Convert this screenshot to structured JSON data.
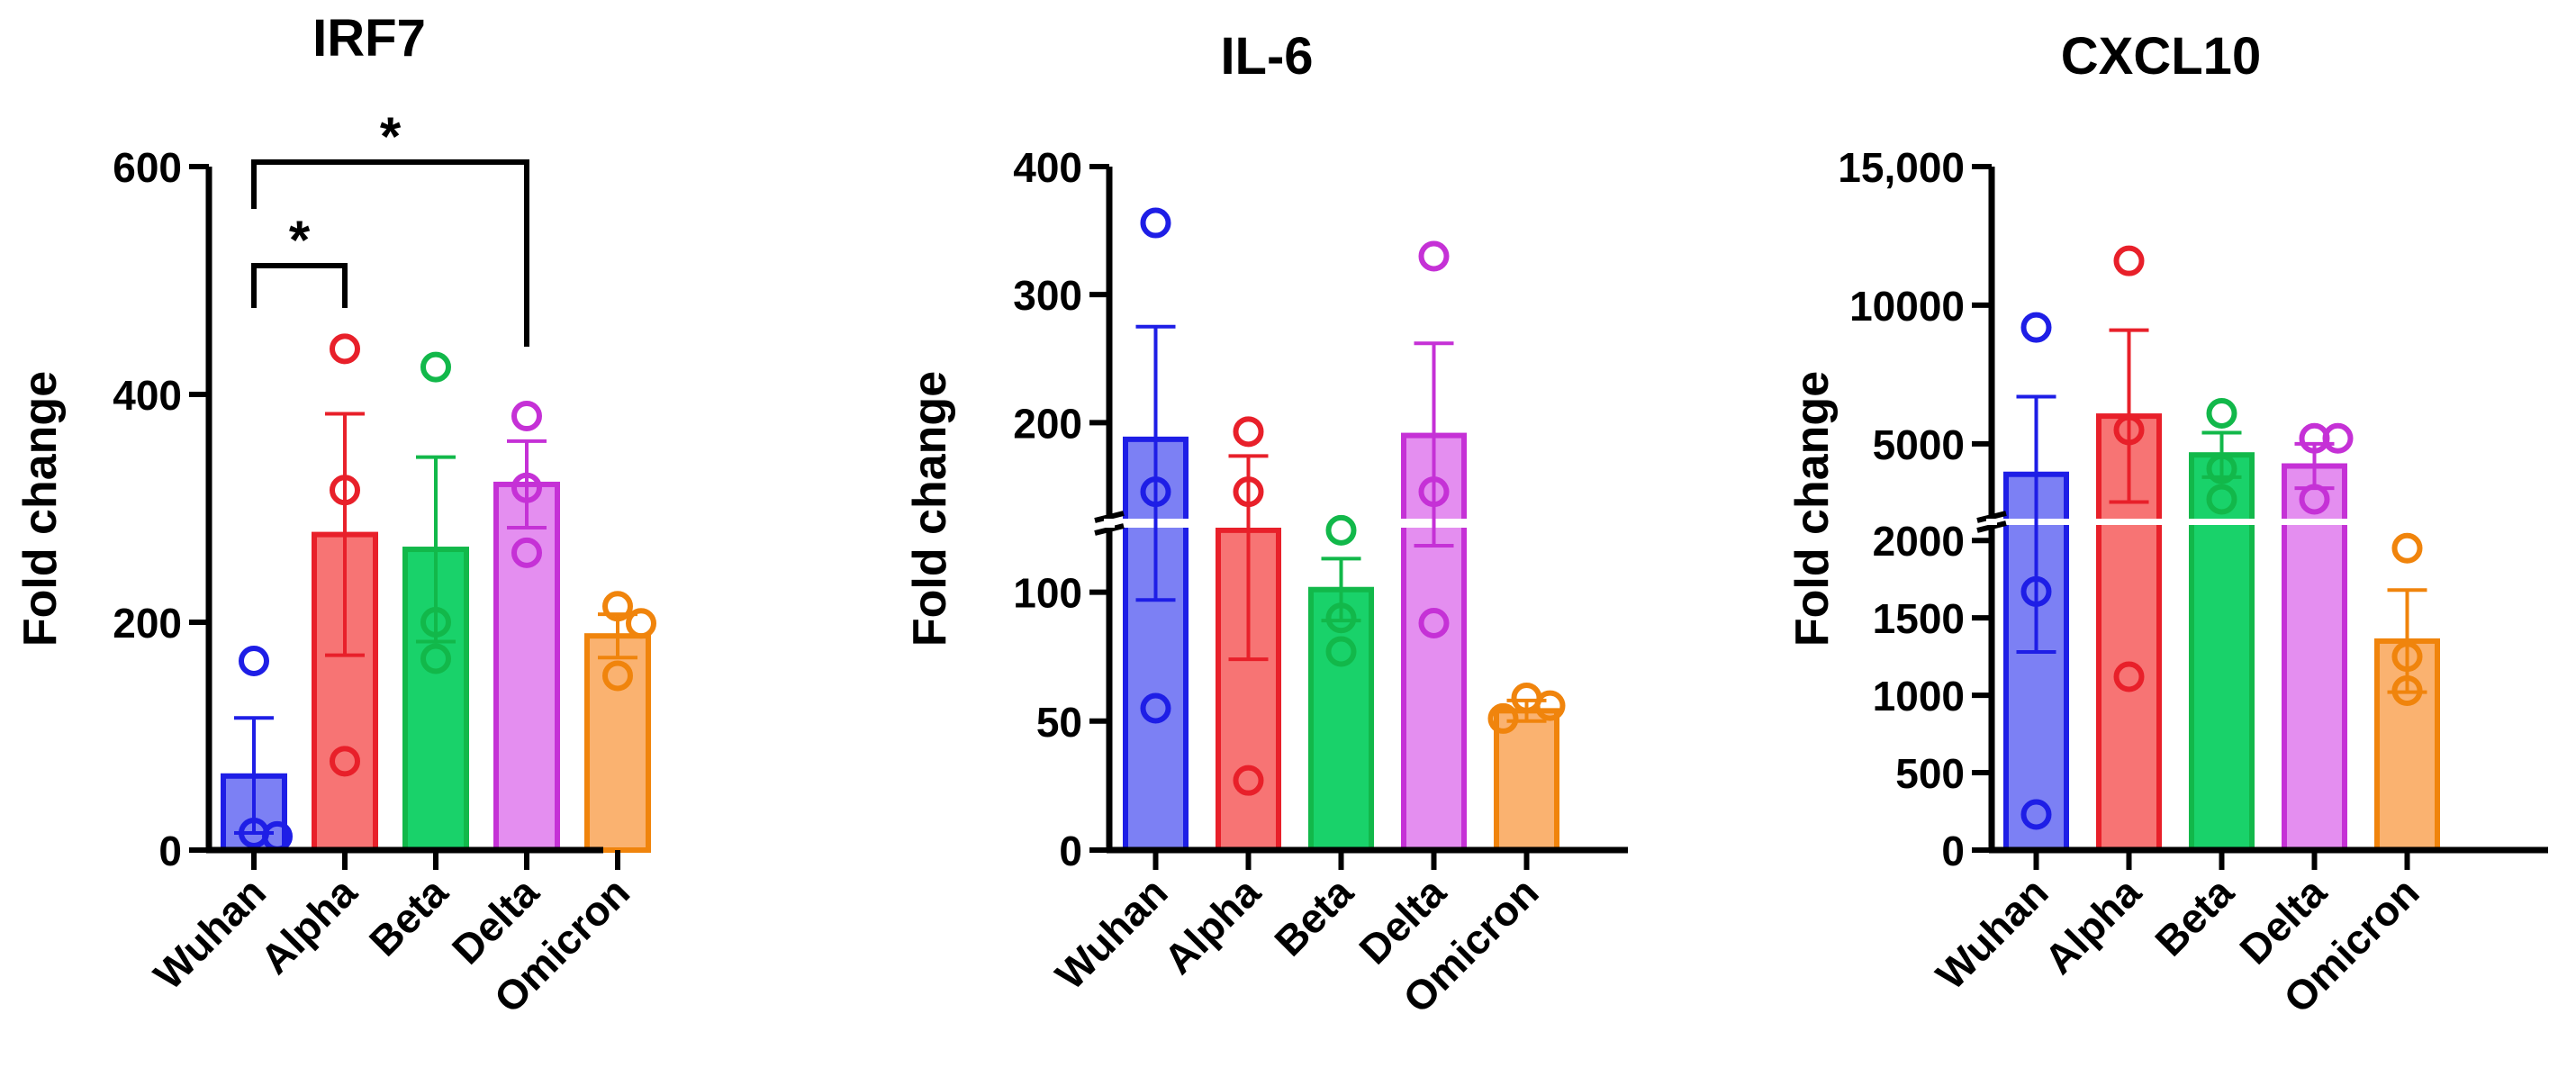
{
  "colors": {
    "Wuhan": "#1e1ee6",
    "Alpha": "#e8202a",
    "Beta": "#12b84a",
    "Delta": "#c531d6",
    "Omicron": "#f0840c",
    "Wuhan_fill": "#7c80f4",
    "Alpha_fill": "#f77474",
    "Beta_fill": "#19d26a",
    "Delta_fill": "#e48ef0",
    "Omicron_fill": "#fab270"
  },
  "chart_data": [
    {
      "type": "bar",
      "title": "IRF7",
      "ylabel": "Fold change",
      "xlabel": "",
      "categories": [
        "Wuhan",
        "Alpha",
        "Beta",
        "Delta",
        "Omicron"
      ],
      "values": [
        65,
        277,
        264,
        321,
        188
      ],
      "error_upper": [
        116,
        383,
        345,
        359,
        207
      ],
      "error_lower": [
        15,
        171,
        183,
        283,
        169
      ],
      "points": [
        [
          166,
          15,
          12
        ],
        [
          440,
          316,
          78
        ],
        [
          424,
          200,
          168
        ],
        [
          381,
          318,
          261
        ],
        [
          214,
          199,
          153
        ]
      ],
      "ylim": [
        0,
        600
      ],
      "y_break": null,
      "yticks": [
        0,
        200,
        400,
        600
      ],
      "ytick_labels": [
        "0",
        "200",
        "400",
        "600"
      ],
      "annotations": [
        {
          "label": "*",
          "from": "Wuhan",
          "to": "Alpha"
        },
        {
          "label": "*",
          "from": "Wuhan",
          "to": "Delta"
        }
      ]
    },
    {
      "type": "bar",
      "title": "IL-6",
      "ylabel": "Fold change",
      "xlabel": "",
      "categories": [
        "Wuhan",
        "Alpha",
        "Beta",
        "Delta",
        "Omicron"
      ],
      "values": [
        187,
        124,
        101,
        190,
        54
      ],
      "error_upper": [
        275,
        174,
        113,
        262,
        58
      ],
      "error_lower": [
        97,
        74,
        89,
        118,
        50
      ],
      "points": [
        [
          356,
          146,
          55
        ],
        [
          193,
          146,
          27
        ],
        [
          124,
          90,
          77
        ],
        [
          330,
          146,
          88
        ],
        [
          59,
          56,
          51
        ]
      ],
      "ylim": [
        0,
        400
      ],
      "y_break": [
        125,
        125
      ],
      "yticks": [
        0,
        50,
        100,
        200,
        300,
        400
      ],
      "ytick_labels": [
        "0",
        "50",
        "100",
        "200",
        "300",
        "400"
      ],
      "annotations": []
    },
    {
      "type": "bar",
      "title": "CXCL10",
      "ylabel": "Fold change",
      "xlabel": "",
      "categories": [
        "Wuhan",
        "Alpha",
        "Beta",
        "Delta",
        "Omicron"
      ],
      "values": [
        3900,
        6000,
        4600,
        4200,
        1350
      ],
      "error_upper": [
        6700,
        9100,
        5400,
        5000,
        1680
      ],
      "error_lower": [
        1280,
        2900,
        3800,
        3400,
        1020
      ],
      "points": [
        [
          9200,
          1670,
          230
        ],
        [
          11600,
          5500,
          1120
        ],
        [
          6100,
          4100,
          3000
        ],
        [
          5200,
          5200,
          3000
        ],
        [
          1950,
          1250,
          1030
        ]
      ],
      "ylim": [
        0,
        15000
      ],
      "y_break": [
        2100,
        2300
      ],
      "yticks": [
        0,
        500,
        1000,
        1500,
        2000,
        5000,
        10000,
        15000
      ],
      "ytick_labels": [
        "0",
        "500",
        "1000",
        "1500",
        "2000",
        "5000",
        "10000",
        "15,000"
      ],
      "annotations": []
    }
  ]
}
